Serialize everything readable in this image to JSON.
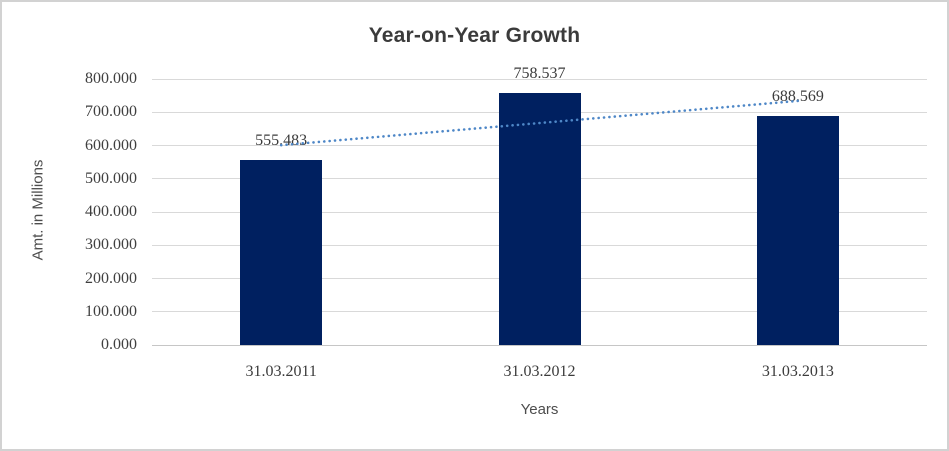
{
  "chart_data": {
    "type": "bar",
    "title": "Year-on-Year Growth",
    "categories": [
      "31.03.2011",
      "31.03.2012",
      "31.03.2013"
    ],
    "values": [
      555.483,
      758.537,
      688.569
    ],
    "data_labels": [
      "555.483",
      "758.537",
      "688.569"
    ],
    "xlabel": "Years",
    "ylabel": "Amt. in Millions",
    "ylim": [
      0,
      800
    ],
    "ytick_step": 100,
    "ytick_labels": [
      "0.000",
      "100.000",
      "200.000",
      "300.000",
      "400.000",
      "500.000",
      "600.000",
      "700.000",
      "800.000"
    ],
    "grid": true,
    "legend": "none",
    "bar_color": "#002060",
    "gridline_color": "#d9d9d9",
    "axis_line_color": "#c6c6c6",
    "title_color": "#3b3b3b",
    "label_color": "#3b3b3b",
    "axis_title_color": "#4d4d4d",
    "frame_border_color": "#d2d2d2",
    "trendline": {
      "type": "linear",
      "style": "dotted",
      "color": "#4e87c7"
    }
  }
}
